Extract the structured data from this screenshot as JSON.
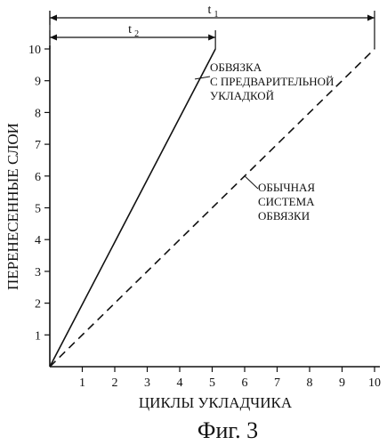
{
  "chart_data": {
    "type": "line",
    "xlabel": "ЦИКЛЫ УКЛАДЧИКА",
    "ylabel": "ПЕРЕНЕСЕННЫЕ СЛОИ",
    "xlim": [
      0,
      10
    ],
    "ylim": [
      0,
      10
    ],
    "x_ticks": [
      "1",
      "2",
      "3",
      "4",
      "5",
      "6",
      "7",
      "8",
      "9",
      "10"
    ],
    "y_ticks": [
      "1",
      "2",
      "3",
      "4",
      "5",
      "6",
      "7",
      "8",
      "9",
      "10"
    ],
    "grid": false,
    "series": [
      {
        "name_lines": [
          "ОБВЯЗКА",
          "С ПРЕДВАРИТЕЛЬНОЙ",
          "УКЛАДКОЙ"
        ],
        "style": "solid",
        "x": [
          0,
          5.1
        ],
        "y": [
          0,
          10
        ]
      },
      {
        "name_lines": [
          "ОБЫЧНАЯ",
          "СИСТЕМА",
          "ОБВЯЗКИ"
        ],
        "style": "dashed",
        "x": [
          0,
          10
        ],
        "y": [
          0,
          10
        ]
      }
    ],
    "intervals": [
      {
        "label": "t",
        "subscript": "1",
        "from": 0,
        "to": 10
      },
      {
        "label": "t",
        "subscript": "2",
        "from": 0,
        "to": 5.1
      }
    ]
  },
  "caption": "Фиг. 3",
  "colors": {
    "ink": "#111111",
    "background": "#ffffff"
  }
}
